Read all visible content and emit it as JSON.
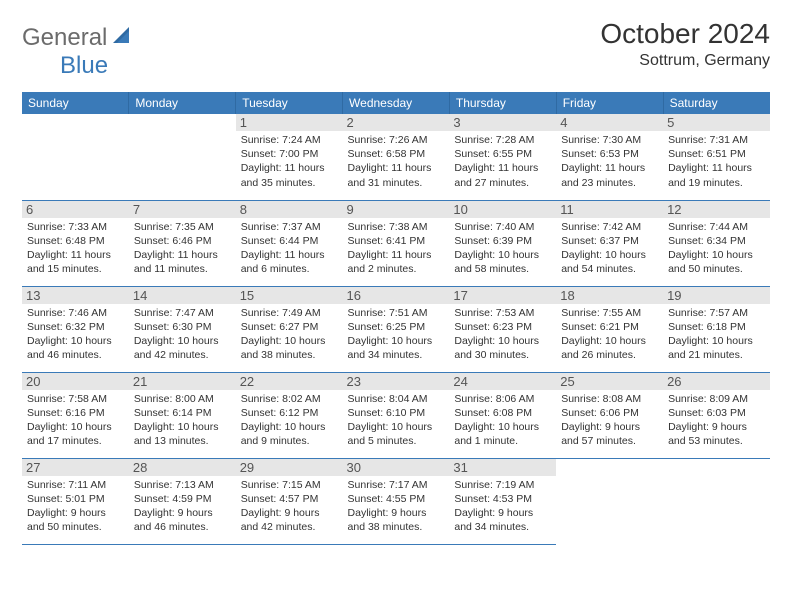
{
  "brand": {
    "general": "General",
    "blue": "Blue"
  },
  "title": "October 2024",
  "location": "Sottrum, Germany",
  "colors": {
    "header_bg": "#3a7ab8",
    "header_text": "#ffffff",
    "daynum_bg": "#e6e6e6",
    "daynum_text": "#555555",
    "body_text": "#333333",
    "row_border": "#3a7ab8",
    "logo_gray": "#6b6b6b",
    "logo_blue": "#3a7ab8"
  },
  "weekdays": [
    "Sunday",
    "Monday",
    "Tuesday",
    "Wednesday",
    "Thursday",
    "Friday",
    "Saturday"
  ],
  "weeks": [
    [
      null,
      null,
      {
        "n": "1",
        "sr": "Sunrise: 7:24 AM",
        "ss": "Sunset: 7:00 PM",
        "dl": "Daylight: 11 hours and 35 minutes."
      },
      {
        "n": "2",
        "sr": "Sunrise: 7:26 AM",
        "ss": "Sunset: 6:58 PM",
        "dl": "Daylight: 11 hours and 31 minutes."
      },
      {
        "n": "3",
        "sr": "Sunrise: 7:28 AM",
        "ss": "Sunset: 6:55 PM",
        "dl": "Daylight: 11 hours and 27 minutes."
      },
      {
        "n": "4",
        "sr": "Sunrise: 7:30 AM",
        "ss": "Sunset: 6:53 PM",
        "dl": "Daylight: 11 hours and 23 minutes."
      },
      {
        "n": "5",
        "sr": "Sunrise: 7:31 AM",
        "ss": "Sunset: 6:51 PM",
        "dl": "Daylight: 11 hours and 19 minutes."
      }
    ],
    [
      {
        "n": "6",
        "sr": "Sunrise: 7:33 AM",
        "ss": "Sunset: 6:48 PM",
        "dl": "Daylight: 11 hours and 15 minutes."
      },
      {
        "n": "7",
        "sr": "Sunrise: 7:35 AM",
        "ss": "Sunset: 6:46 PM",
        "dl": "Daylight: 11 hours and 11 minutes."
      },
      {
        "n": "8",
        "sr": "Sunrise: 7:37 AM",
        "ss": "Sunset: 6:44 PM",
        "dl": "Daylight: 11 hours and 6 minutes."
      },
      {
        "n": "9",
        "sr": "Sunrise: 7:38 AM",
        "ss": "Sunset: 6:41 PM",
        "dl": "Daylight: 11 hours and 2 minutes."
      },
      {
        "n": "10",
        "sr": "Sunrise: 7:40 AM",
        "ss": "Sunset: 6:39 PM",
        "dl": "Daylight: 10 hours and 58 minutes."
      },
      {
        "n": "11",
        "sr": "Sunrise: 7:42 AM",
        "ss": "Sunset: 6:37 PM",
        "dl": "Daylight: 10 hours and 54 minutes."
      },
      {
        "n": "12",
        "sr": "Sunrise: 7:44 AM",
        "ss": "Sunset: 6:34 PM",
        "dl": "Daylight: 10 hours and 50 minutes."
      }
    ],
    [
      {
        "n": "13",
        "sr": "Sunrise: 7:46 AM",
        "ss": "Sunset: 6:32 PM",
        "dl": "Daylight: 10 hours and 46 minutes."
      },
      {
        "n": "14",
        "sr": "Sunrise: 7:47 AM",
        "ss": "Sunset: 6:30 PM",
        "dl": "Daylight: 10 hours and 42 minutes."
      },
      {
        "n": "15",
        "sr": "Sunrise: 7:49 AM",
        "ss": "Sunset: 6:27 PM",
        "dl": "Daylight: 10 hours and 38 minutes."
      },
      {
        "n": "16",
        "sr": "Sunrise: 7:51 AM",
        "ss": "Sunset: 6:25 PM",
        "dl": "Daylight: 10 hours and 34 minutes."
      },
      {
        "n": "17",
        "sr": "Sunrise: 7:53 AM",
        "ss": "Sunset: 6:23 PM",
        "dl": "Daylight: 10 hours and 30 minutes."
      },
      {
        "n": "18",
        "sr": "Sunrise: 7:55 AM",
        "ss": "Sunset: 6:21 PM",
        "dl": "Daylight: 10 hours and 26 minutes."
      },
      {
        "n": "19",
        "sr": "Sunrise: 7:57 AM",
        "ss": "Sunset: 6:18 PM",
        "dl": "Daylight: 10 hours and 21 minutes."
      }
    ],
    [
      {
        "n": "20",
        "sr": "Sunrise: 7:58 AM",
        "ss": "Sunset: 6:16 PM",
        "dl": "Daylight: 10 hours and 17 minutes."
      },
      {
        "n": "21",
        "sr": "Sunrise: 8:00 AM",
        "ss": "Sunset: 6:14 PM",
        "dl": "Daylight: 10 hours and 13 minutes."
      },
      {
        "n": "22",
        "sr": "Sunrise: 8:02 AM",
        "ss": "Sunset: 6:12 PM",
        "dl": "Daylight: 10 hours and 9 minutes."
      },
      {
        "n": "23",
        "sr": "Sunrise: 8:04 AM",
        "ss": "Sunset: 6:10 PM",
        "dl": "Daylight: 10 hours and 5 minutes."
      },
      {
        "n": "24",
        "sr": "Sunrise: 8:06 AM",
        "ss": "Sunset: 6:08 PM",
        "dl": "Daylight: 10 hours and 1 minute."
      },
      {
        "n": "25",
        "sr": "Sunrise: 8:08 AM",
        "ss": "Sunset: 6:06 PM",
        "dl": "Daylight: 9 hours and 57 minutes."
      },
      {
        "n": "26",
        "sr": "Sunrise: 8:09 AM",
        "ss": "Sunset: 6:03 PM",
        "dl": "Daylight: 9 hours and 53 minutes."
      }
    ],
    [
      {
        "n": "27",
        "sr": "Sunrise: 7:11 AM",
        "ss": "Sunset: 5:01 PM",
        "dl": "Daylight: 9 hours and 50 minutes."
      },
      {
        "n": "28",
        "sr": "Sunrise: 7:13 AM",
        "ss": "Sunset: 4:59 PM",
        "dl": "Daylight: 9 hours and 46 minutes."
      },
      {
        "n": "29",
        "sr": "Sunrise: 7:15 AM",
        "ss": "Sunset: 4:57 PM",
        "dl": "Daylight: 9 hours and 42 minutes."
      },
      {
        "n": "30",
        "sr": "Sunrise: 7:17 AM",
        "ss": "Sunset: 4:55 PM",
        "dl": "Daylight: 9 hours and 38 minutes."
      },
      {
        "n": "31",
        "sr": "Sunrise: 7:19 AM",
        "ss": "Sunset: 4:53 PM",
        "dl": "Daylight: 9 hours and 34 minutes."
      },
      null,
      null
    ]
  ]
}
